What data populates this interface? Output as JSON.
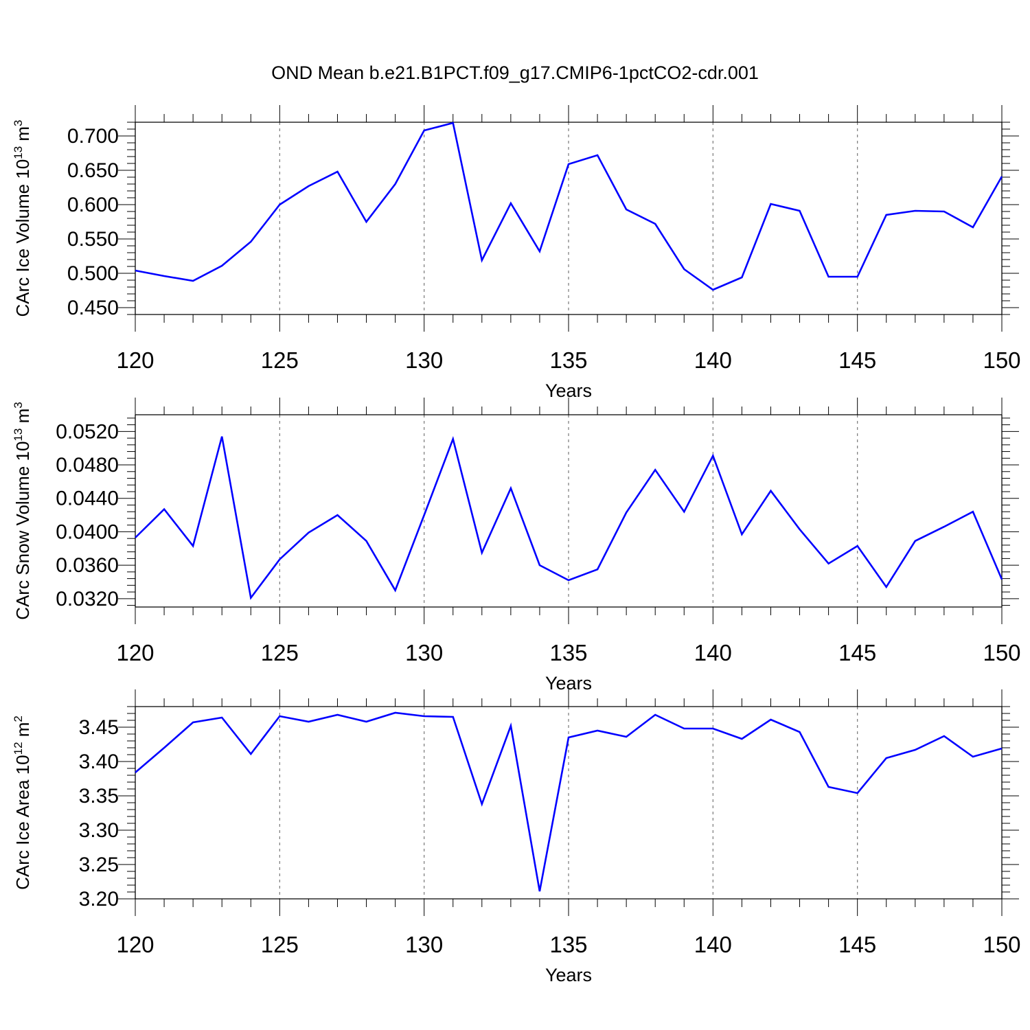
{
  "chart_data": [
    {
      "type": "line",
      "title": "OND Mean b.e21.B1PCT.f09_g17.CMIP6-1pctCO2-cdr.001",
      "xlabel": "Years",
      "ylabel": "CArc Ice Volume 10",
      "ylabel_exp": "13",
      "ylabel_unit": " m",
      "ylabel_unit_exp": "3",
      "xlim": [
        120,
        150
      ],
      "ylim": [
        0.44,
        0.72
      ],
      "xticks": [
        120,
        125,
        130,
        135,
        140,
        145,
        150
      ],
      "yticks": [
        0.45,
        0.5,
        0.55,
        0.6,
        0.65,
        0.7
      ],
      "ytick_labels": [
        "0.450",
        "0.500",
        "0.550",
        "0.600",
        "0.650",
        "0.700"
      ],
      "grid": "x-dashed",
      "line_color": "#0000ff",
      "x": [
        120,
        121,
        122,
        123,
        124,
        125,
        126,
        127,
        128,
        129,
        130,
        131,
        132,
        133,
        134,
        135,
        136,
        137,
        138,
        139,
        140,
        141,
        142,
        143,
        144,
        145,
        146,
        147,
        148,
        149,
        150
      ],
      "y": [
        0.504,
        0.496,
        0.489,
        0.511,
        0.546,
        0.6,
        0.627,
        0.648,
        0.575,
        0.63,
        0.708,
        0.719,
        0.519,
        0.602,
        0.532,
        0.659,
        0.672,
        0.593,
        0.572,
        0.506,
        0.476,
        0.494,
        0.601,
        0.591,
        0.495,
        0.495,
        0.585,
        0.591,
        0.59,
        0.567,
        0.641
      ]
    },
    {
      "type": "line",
      "title": "",
      "xlabel": "Years",
      "ylabel": "CArc Snow Volume 10",
      "ylabel_exp": "13",
      "ylabel_unit": " m",
      "ylabel_unit_exp": "3",
      "xlim": [
        120,
        150
      ],
      "ylim": [
        0.031,
        0.054
      ],
      "xticks": [
        120,
        125,
        130,
        135,
        140,
        145,
        150
      ],
      "yticks": [
        0.032,
        0.036,
        0.04,
        0.044,
        0.048,
        0.052
      ],
      "ytick_labels": [
        "0.0320",
        "0.0360",
        "0.0400",
        "0.0440",
        "0.0480",
        "0.0520"
      ],
      "grid": "x-dashed",
      "line_color": "#0000ff",
      "x": [
        120,
        121,
        122,
        123,
        124,
        125,
        126,
        127,
        128,
        129,
        130,
        131,
        132,
        133,
        134,
        135,
        136,
        137,
        138,
        139,
        140,
        141,
        142,
        143,
        144,
        145,
        146,
        147,
        148,
        149,
        150
      ],
      "y": [
        0.0393,
        0.0427,
        0.0383,
        0.0514,
        0.0321,
        0.0367,
        0.0399,
        0.042,
        0.0389,
        0.033,
        0.042,
        0.0511,
        0.0375,
        0.0452,
        0.036,
        0.0342,
        0.0355,
        0.0423,
        0.0474,
        0.0424,
        0.0491,
        0.0397,
        0.0449,
        0.0403,
        0.0362,
        0.0383,
        0.0334,
        0.0389,
        0.0406,
        0.0424,
        0.0343
      ]
    },
    {
      "type": "line",
      "title": "",
      "xlabel": "Years",
      "ylabel": "CArc Ice Area 10",
      "ylabel_exp": "12",
      "ylabel_unit": " m",
      "ylabel_unit_exp": "2",
      "xlim": [
        120,
        150
      ],
      "ylim": [
        3.2,
        3.48
      ],
      "xticks": [
        120,
        125,
        130,
        135,
        140,
        145,
        150
      ],
      "yticks": [
        3.2,
        3.25,
        3.3,
        3.35,
        3.4,
        3.45
      ],
      "ytick_labels": [
        "3.20",
        "3.25",
        "3.30",
        "3.35",
        "3.40",
        "3.45"
      ],
      "grid": "x-dashed",
      "line_color": "#0000ff",
      "x": [
        120,
        121,
        122,
        123,
        124,
        125,
        126,
        127,
        128,
        129,
        130,
        131,
        132,
        133,
        134,
        135,
        136,
        137,
        138,
        139,
        140,
        141,
        142,
        143,
        144,
        145,
        146,
        147,
        148,
        149,
        150
      ],
      "y": [
        3.384,
        3.42,
        3.457,
        3.464,
        3.411,
        3.466,
        3.458,
        3.468,
        3.458,
        3.471,
        3.466,
        3.465,
        3.338,
        3.452,
        3.211,
        3.435,
        3.445,
        3.436,
        3.468,
        3.448,
        3.448,
        3.433,
        3.461,
        3.443,
        3.363,
        3.354,
        3.405,
        3.417,
        3.437,
        3.407,
        3.419
      ]
    }
  ]
}
